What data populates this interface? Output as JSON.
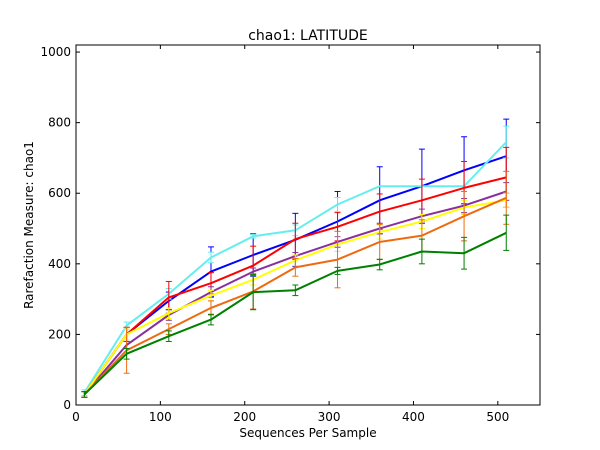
{
  "chart_data": {
    "type": "line",
    "title": "chao1: LATITUDE",
    "xlabel": "Sequences Per Sample",
    "ylabel": "Rarefaction Measure: chao1",
    "xlim": [
      0,
      550
    ],
    "ylim": [
      0,
      1020
    ],
    "xticks": [
      0,
      100,
      200,
      300,
      400,
      500
    ],
    "yticks": [
      0,
      200,
      400,
      600,
      800,
      1000
    ],
    "grid": false,
    "legend": "none",
    "x": [
      10,
      60,
      110,
      160,
      210,
      260,
      310,
      360,
      410,
      460,
      510
    ],
    "series": [
      {
        "color": "#0000ff",
        "values": [
          30,
          200,
          295,
          378,
          425,
          468,
          520,
          580,
          620,
          665,
          705
        ],
        "err": [
          8,
          20,
          25,
          70,
          60,
          75,
          85,
          95,
          105,
          95,
          105
        ]
      },
      {
        "color": "#66eeee",
        "values": [
          35,
          225,
          315,
          418,
          478,
          495,
          568,
          620,
          620,
          620,
          745
        ],
        "err": [
          8,
          10,
          15,
          15,
          5,
          15,
          20,
          0,
          0,
          0,
          45
        ]
      },
      {
        "color": "#ff0000",
        "values": [
          30,
          200,
          305,
          345,
          395,
          470,
          505,
          548,
          580,
          615,
          645
        ],
        "err": [
          8,
          20,
          45,
          30,
          55,
          45,
          40,
          50,
          60,
          75,
          85
        ]
      },
      {
        "color": "#8b2f9f",
        "values": [
          30,
          170,
          255,
          320,
          378,
          422,
          462,
          500,
          535,
          565,
          605
        ],
        "err": [
          8,
          10,
          15,
          15,
          10,
          10,
          15,
          15,
          20,
          20,
          25
        ]
      },
      {
        "color": "#ffff00",
        "values": [
          30,
          200,
          260,
          310,
          355,
          410,
          455,
          490,
          520,
          560,
          580
        ],
        "err": [
          8,
          15,
          15,
          15,
          15,
          15,
          20,
          20,
          20,
          20,
          20
        ]
      },
      {
        "color": "#ee6a10",
        "values": [
          30,
          155,
          215,
          275,
          322,
          390,
          412,
          462,
          480,
          535,
          587
        ],
        "err": [
          8,
          65,
          15,
          20,
          50,
          25,
          80,
          50,
          45,
          70,
          75
        ]
      },
      {
        "color": "#008000",
        "values": [
          30,
          145,
          195,
          242,
          320,
          325,
          380,
          398,
          435,
          430,
          488
        ],
        "err": [
          8,
          15,
          15,
          15,
          50,
          15,
          10,
          15,
          35,
          45,
          50
        ]
      }
    ]
  }
}
